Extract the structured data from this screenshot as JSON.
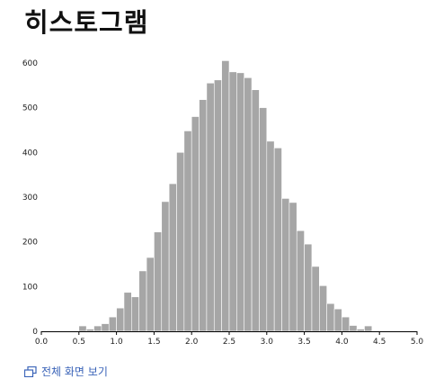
{
  "page": {
    "title": "히스토그램",
    "fullscreen_label": "전체 화면 보기"
  },
  "icons": {
    "fullscreen": "fullscreen-icon"
  },
  "colors": {
    "bar_fill": "#a6a6a6",
    "bar_stroke": "#ffffff",
    "axis": "#000000",
    "link": "#3a63b8"
  },
  "chart_data": {
    "type": "bar",
    "title": "",
    "xlabel": "",
    "ylabel": "",
    "xlim": [
      0,
      5
    ],
    "ylim": [
      0,
      630
    ],
    "bin_width": 0.1,
    "x_ticks": [
      0,
      0.5,
      1,
      1.5,
      2,
      2.5,
      3,
      3.5,
      4,
      4.5,
      5
    ],
    "x_tick_labels": [
      "0.0",
      "0.5",
      "1.0",
      "1.5",
      "2.0",
      "2.5",
      "3.0",
      "3.5",
      "4.0",
      "4.5",
      "5.0"
    ],
    "y_ticks": [
      0,
      100,
      200,
      300,
      400,
      500,
      600
    ],
    "y_tick_labels": [
      "0",
      "100",
      "200",
      "300",
      "400",
      "500",
      "600"
    ],
    "grid": false,
    "bins": [
      {
        "x": 0.5,
        "count": 12
      },
      {
        "x": 0.6,
        "count": 5
      },
      {
        "x": 0.7,
        "count": 12
      },
      {
        "x": 0.8,
        "count": 17
      },
      {
        "x": 0.9,
        "count": 32
      },
      {
        "x": 1.0,
        "count": 52
      },
      {
        "x": 1.1,
        "count": 87
      },
      {
        "x": 1.2,
        "count": 77
      },
      {
        "x": 1.3,
        "count": 135
      },
      {
        "x": 1.4,
        "count": 165
      },
      {
        "x": 1.5,
        "count": 222
      },
      {
        "x": 1.6,
        "count": 290
      },
      {
        "x": 1.7,
        "count": 330
      },
      {
        "x": 1.8,
        "count": 400
      },
      {
        "x": 1.9,
        "count": 448
      },
      {
        "x": 2.0,
        "count": 480
      },
      {
        "x": 2.1,
        "count": 518
      },
      {
        "x": 2.2,
        "count": 555
      },
      {
        "x": 2.3,
        "count": 562
      },
      {
        "x": 2.4,
        "count": 605
      },
      {
        "x": 2.5,
        "count": 580
      },
      {
        "x": 2.6,
        "count": 578
      },
      {
        "x": 2.7,
        "count": 567
      },
      {
        "x": 2.8,
        "count": 540
      },
      {
        "x": 2.9,
        "count": 500
      },
      {
        "x": 3.0,
        "count": 425
      },
      {
        "x": 3.1,
        "count": 410
      },
      {
        "x": 3.2,
        "count": 297
      },
      {
        "x": 3.3,
        "count": 288
      },
      {
        "x": 3.4,
        "count": 225
      },
      {
        "x": 3.5,
        "count": 195
      },
      {
        "x": 3.6,
        "count": 145
      },
      {
        "x": 3.7,
        "count": 102
      },
      {
        "x": 3.8,
        "count": 62
      },
      {
        "x": 3.9,
        "count": 50
      },
      {
        "x": 4.0,
        "count": 32
      },
      {
        "x": 4.1,
        "count": 13
      },
      {
        "x": 4.2,
        "count": 5
      },
      {
        "x": 4.3,
        "count": 12
      }
    ]
  }
}
